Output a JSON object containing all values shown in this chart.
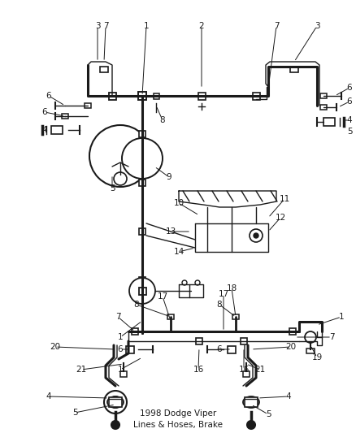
{
  "title": "1998 Dodge Viper\nLines & Hoses, Brake",
  "bg_color": "#ffffff",
  "lc": "#1a1a1a",
  "figsize": [
    4.38,
    5.33
  ],
  "dpi": 100
}
